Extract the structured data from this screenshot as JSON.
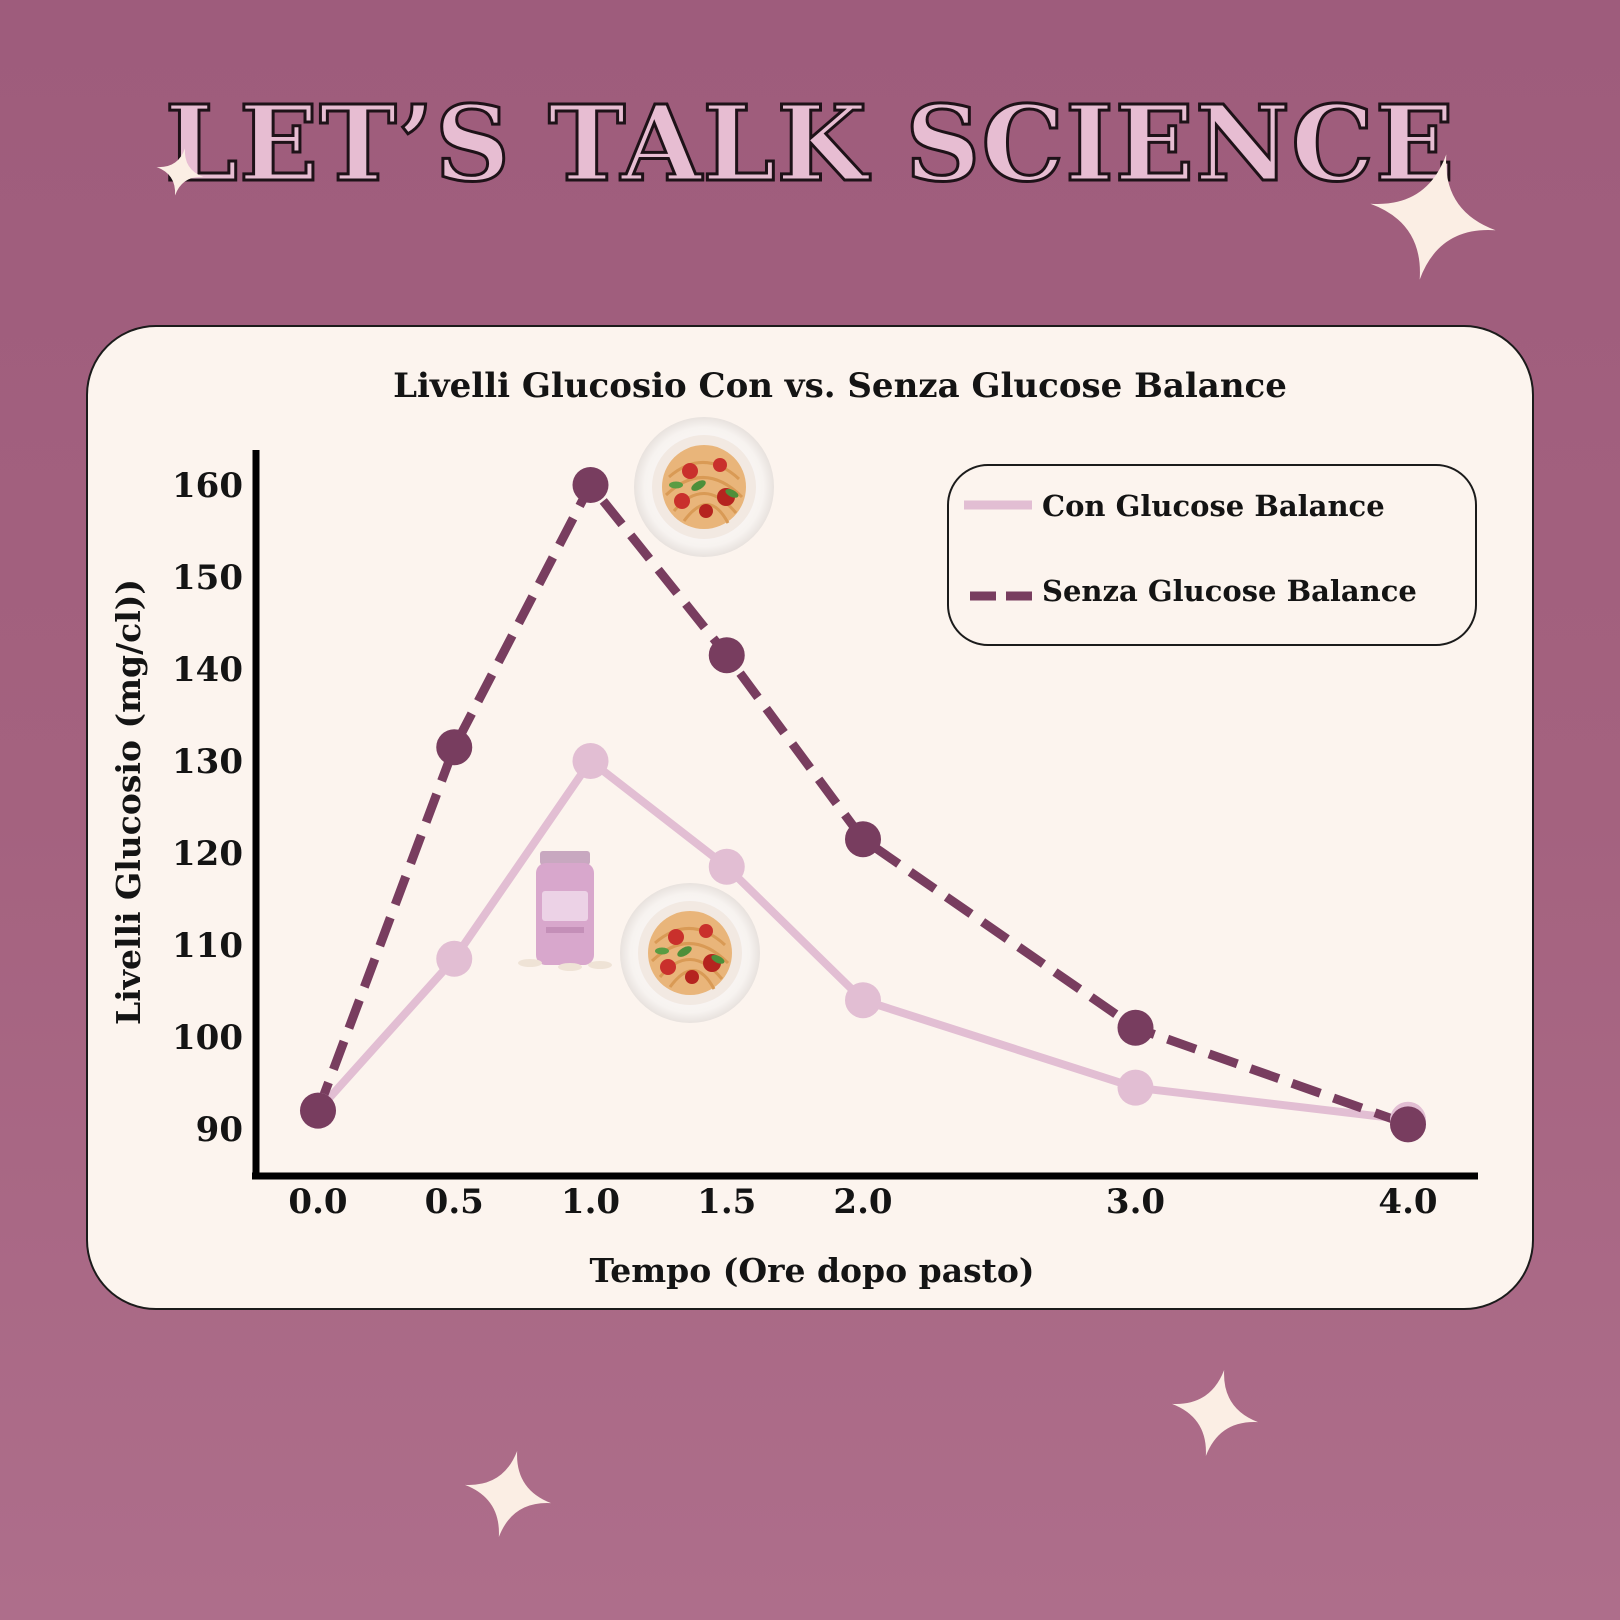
{
  "poster": {
    "title": "LET’S TALK SCIENCE",
    "colors": {
      "background": "#a4627f",
      "card": "#fcf4ee",
      "title_fill": "#e7bdd2",
      "sparkle": "#fbeee4"
    }
  },
  "chart_data": {
    "type": "line",
    "title": "Livelli Glucosio Con vs. Senza Glucose Balance",
    "xlabel": "Tempo (Ore dopo pasto)",
    "ylabel": "Livelli Glucosio (mg/cl))",
    "x_ticks": [
      0.0,
      0.5,
      1.0,
      1.5,
      2.0,
      3.0,
      4.0
    ],
    "x_tick_labels": [
      "0.0",
      "0.5",
      "1.0",
      "1.5",
      "2.0",
      "3.0",
      "4.0"
    ],
    "y_ticks": [
      90,
      100,
      110,
      120,
      130,
      140,
      150,
      160
    ],
    "y_tick_labels": [
      "90",
      "100",
      "110",
      "120",
      "130",
      "140",
      "150",
      "160"
    ],
    "xlim": [
      0,
      4
    ],
    "ylim": [
      90,
      160
    ],
    "grid": false,
    "legend_position": "top-right",
    "series": [
      {
        "name": "Con Glucose Balance",
        "style": "solid",
        "color": "#e2bed3",
        "x": [
          0.0,
          0.5,
          1.0,
          1.5,
          2.0,
          3.0,
          4.0
        ],
        "y": [
          92,
          108.5,
          130,
          118.5,
          104,
          94.5,
          91
        ]
      },
      {
        "name": "Senza Glucose Balance",
        "style": "dashed",
        "color": "#783d5f",
        "x": [
          0.0,
          0.5,
          1.0,
          1.5,
          2.0,
          3.0,
          4.0
        ],
        "y": [
          92,
          131.5,
          160,
          141.5,
          121.5,
          101,
          90.5
        ]
      }
    ],
    "annotations": [
      {
        "icon": "spaghetti-plate-icon",
        "near_series": "Senza Glucose Balance",
        "at_x": 1.0
      },
      {
        "icon": "spaghetti-plate-icon",
        "near_series": "Con Glucose Balance",
        "at_x": 1.0
      },
      {
        "icon": "supplement-bottle-icon",
        "near_series": "Con Glucose Balance",
        "at_x": 0.5
      }
    ]
  }
}
